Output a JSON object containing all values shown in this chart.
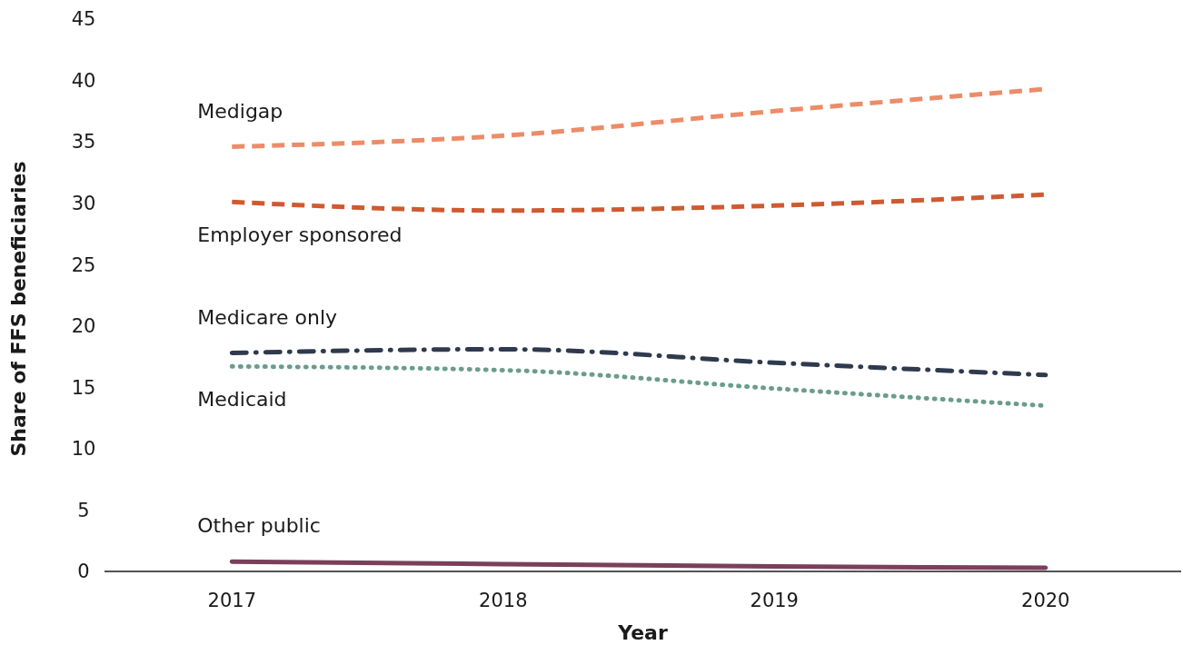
{
  "chart_data": {
    "type": "line",
    "xlabel": "Year",
    "ylabel": "Share of FFS beneficiaries",
    "x": [
      2017,
      2018,
      2019,
      2020
    ],
    "xlim": [
      2016.53,
      2020.5
    ],
    "xticks": [
      2017,
      2018,
      2019,
      2020
    ],
    "ylim": [
      0,
      45
    ],
    "yticks": [
      0,
      5,
      10,
      15,
      20,
      25,
      30,
      35,
      40,
      45
    ],
    "grid": false,
    "marker": "none",
    "series": [
      {
        "name": "Medigap",
        "color": "#ec8c68",
        "line_style": "dashed",
        "values": [
          34.6,
          35.5,
          37.5,
          39.3
        ]
      },
      {
        "name": "Employer sponsored",
        "color": "#cf5a30",
        "line_style": "dashed",
        "values": [
          30.1,
          29.4,
          29.8,
          30.7
        ]
      },
      {
        "name": "Medicare only",
        "color": "#2f3a4e",
        "line_style": "dashdot",
        "values": [
          17.8,
          18.1,
          17.0,
          16.0
        ]
      },
      {
        "name": "Medicaid",
        "color": "#6b9c8e",
        "line_style": "dotted",
        "values": [
          16.7,
          16.4,
          14.9,
          13.5
        ]
      },
      {
        "name": "Other public",
        "color": "#7b3f5a",
        "line_style": "solid",
        "values": [
          0.8,
          0.6,
          0.4,
          0.3
        ]
      }
    ]
  }
}
